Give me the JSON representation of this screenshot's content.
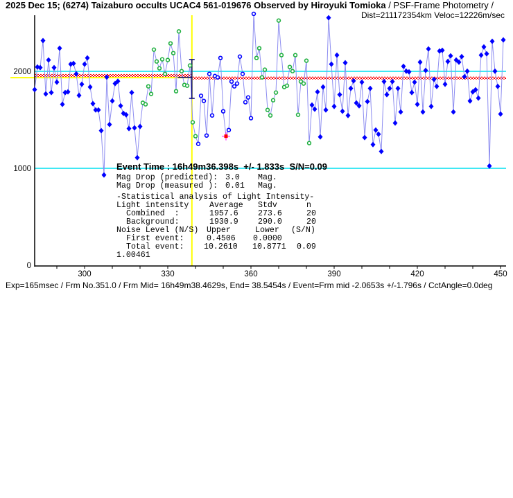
{
  "header": {
    "title_bold": "2025 Dec 15; (6274) Taizaburo occults UCAC4 561-019676 Observed by Hiroyuki Tomioka",
    "title_rest": " / PSF-Frame Photometry /",
    "subtitle": "Dist=211172354km Veloc=12226m/sec"
  },
  "event": {
    "line": "Event Time : 16h49m36.398s  +/- 1.833s  S/N=0.09",
    "mag_pred_label": "Mag Drop (predicted):",
    "mag_pred_value": "3.0",
    "mag_meas_label": "Mag Drop (measured ):",
    "mag_meas_value": "0.01",
    "mag_unit": "Mag."
  },
  "stats": {
    "heading": "-Statistical analysis of Light Intensity-",
    "col_label": "Light intensity",
    "col_avg": "Average",
    "col_stdv": "Stdv",
    "col_n": "n",
    "combined": {
      "label": "Combined  :",
      "avg": "1957.6",
      "stdv": "273.6",
      "n": "20"
    },
    "background": {
      "label": "Background:",
      "avg": "1930.9",
      "stdv": "290.0",
      "n": "20"
    },
    "noise_label": "Noise Level (N/S)",
    "col_upper": "Upper",
    "col_lower": "Lower",
    "col_sn": "(S/N)",
    "first": {
      "label": "First event:",
      "upper": "0.4506",
      "lower": "0.0000"
    },
    "total": {
      "label": "Total event:",
      "upper": "10.2610",
      "lower": "10.8771",
      "sn": "0.09"
    },
    "ratio": "1.00461"
  },
  "footer": "Exp=165msec / Frm No.351.0 / Frm Mid= 16h49m38.4629s,  End= 38.5454s / Event=Frm mid -2.0653s +/-1.796s / CctAngle=0.0deg",
  "colors": {
    "line": "#8c8cf0",
    "point": "#0000ff",
    "green": "#20b040",
    "cyan": "#00e0f0",
    "yellow": "#ffff00",
    "red": "#ff0000",
    "navy": "#000080"
  },
  "chart_data": {
    "type": "line",
    "title": "2025 Dec 15; (6274) Taizaburo occults UCAC4 561-019676",
    "xlabel": "",
    "ylabel": "",
    "xlim": [
      282,
      451
    ],
    "ylim": [
      0,
      2580
    ],
    "xticks": [
      300,
      330,
      360,
      390,
      420,
      450
    ],
    "xtick_labels": [
      "300",
      "330",
      "360",
      "390",
      "420",
      "450"
    ],
    "yticks": [
      0,
      1000,
      2000
    ],
    "ytick_labels": [
      "0",
      "1000",
      "2000"
    ],
    "grid": false,
    "x_start_frame": 282,
    "values": [
      1812,
      2045,
      2038,
      2317,
      1767,
      2117,
      1781,
      2038,
      1888,
      2238,
      1660,
      1781,
      1788,
      2074,
      2081,
      1974,
      1752,
      1867,
      2074,
      2138,
      1838,
      1667,
      1602,
      1602,
      1388,
      931,
      1940,
      1452,
      1695,
      1874,
      1898,
      1645,
      1567,
      1552,
      1410,
      1781,
      1417,
      1110,
      1431,
      1676,
      1660,
      1845,
      1767,
      2224,
      2102,
      2031,
      2124,
      1974,
      2117,
      2288,
      2188,
      1795,
      2412,
      2002,
      1860,
      1852,
      2060,
      1474,
      1331,
      1252,
      1748,
      1695,
      1338,
      1974,
      1545,
      1952,
      1938,
      2138,
      1588,
      1331,
      1395,
      1895,
      1845,
      1874,
      2152,
      1974,
      1681,
      1731,
      1517,
      2593,
      2138,
      2238,
      1938,
      2017,
      1602,
      1545,
      1702,
      1781,
      2524,
      2167,
      1838,
      1852,
      2045,
      2002,
      2167,
      1552,
      1895,
      1874,
      2110,
      1260,
      1653,
      1610,
      1788,
      1324,
      1838,
      1602,
      2553,
      2074,
      1638,
      2167,
      1760,
      1588,
      2088,
      1545,
      1824,
      1902,
      1674,
      1645,
      1888,
      1317,
      1688,
      1824,
      1245,
      1395,
      1352,
      1174,
      1895,
      1760,
      1824,
      1895,
      1467,
      1824,
      1581,
      2052,
      2002,
      1995,
      1781,
      1888,
      1660,
      2095,
      1581,
      2010,
      2231,
      1638,
      1917,
      1845,
      2210,
      2217,
      1867,
      2102,
      2160,
      1581,
      2117,
      2095,
      2152,
      1945,
      2002,
      1695,
      1788,
      1810,
      1724,
      2167,
      2252,
      2181,
      1024,
      2310,
      2002,
      1845,
      1560,
      2324
    ],
    "segments": [
      {
        "start_frame": 321,
        "end_frame": 340,
        "style": "combined-green"
      },
      {
        "start_frame": 341,
        "end_frame": 361,
        "style": "background-hollow"
      },
      {
        "start_frame": 362,
        "end_frame": 381,
        "style": "combined-green"
      }
    ],
    "event_point_frame": 351,
    "event_frame": 338.7,
    "event_error_frames": 0.45,
    "reference_lines": [
      2000,
      1000
    ],
    "level_before": 1957.6,
    "level_after": 1930.9,
    "yellow_level": 1935
  }
}
